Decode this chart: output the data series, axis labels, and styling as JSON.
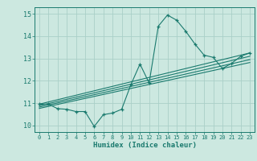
{
  "xlabel": "Humidex (Indice chaleur)",
  "bg_color": "#cce8e0",
  "line_color": "#1a7a6e",
  "grid_color": "#aacfc8",
  "xlim": [
    -0.5,
    23.5
  ],
  "ylim": [
    9.7,
    15.3
  ],
  "xticks": [
    0,
    1,
    2,
    3,
    4,
    5,
    6,
    7,
    8,
    9,
    10,
    11,
    12,
    13,
    14,
    15,
    16,
    17,
    18,
    19,
    20,
    21,
    22,
    23
  ],
  "yticks": [
    10,
    11,
    12,
    13,
    14,
    15
  ],
  "curve_x": [
    0,
    1,
    2,
    3,
    4,
    5,
    6,
    7,
    8,
    9,
    10,
    11,
    12,
    13,
    14,
    15,
    16,
    17,
    18,
    19,
    20,
    21,
    22,
    23
  ],
  "curve_y": [
    10.95,
    10.95,
    10.75,
    10.72,
    10.62,
    10.62,
    9.95,
    10.48,
    10.55,
    10.72,
    11.82,
    12.75,
    11.9,
    14.45,
    14.95,
    14.72,
    14.22,
    13.65,
    13.15,
    13.05,
    12.55,
    12.78,
    13.1,
    13.25
  ],
  "reg_lines": [
    {
      "x": [
        0,
        23
      ],
      "y": [
        10.95,
        13.25
      ]
    },
    {
      "x": [
        0,
        23
      ],
      "y": [
        10.88,
        13.1
      ]
    },
    {
      "x": [
        0,
        23
      ],
      "y": [
        10.82,
        12.95
      ]
    },
    {
      "x": [
        0,
        23
      ],
      "y": [
        10.76,
        12.82
      ]
    }
  ]
}
